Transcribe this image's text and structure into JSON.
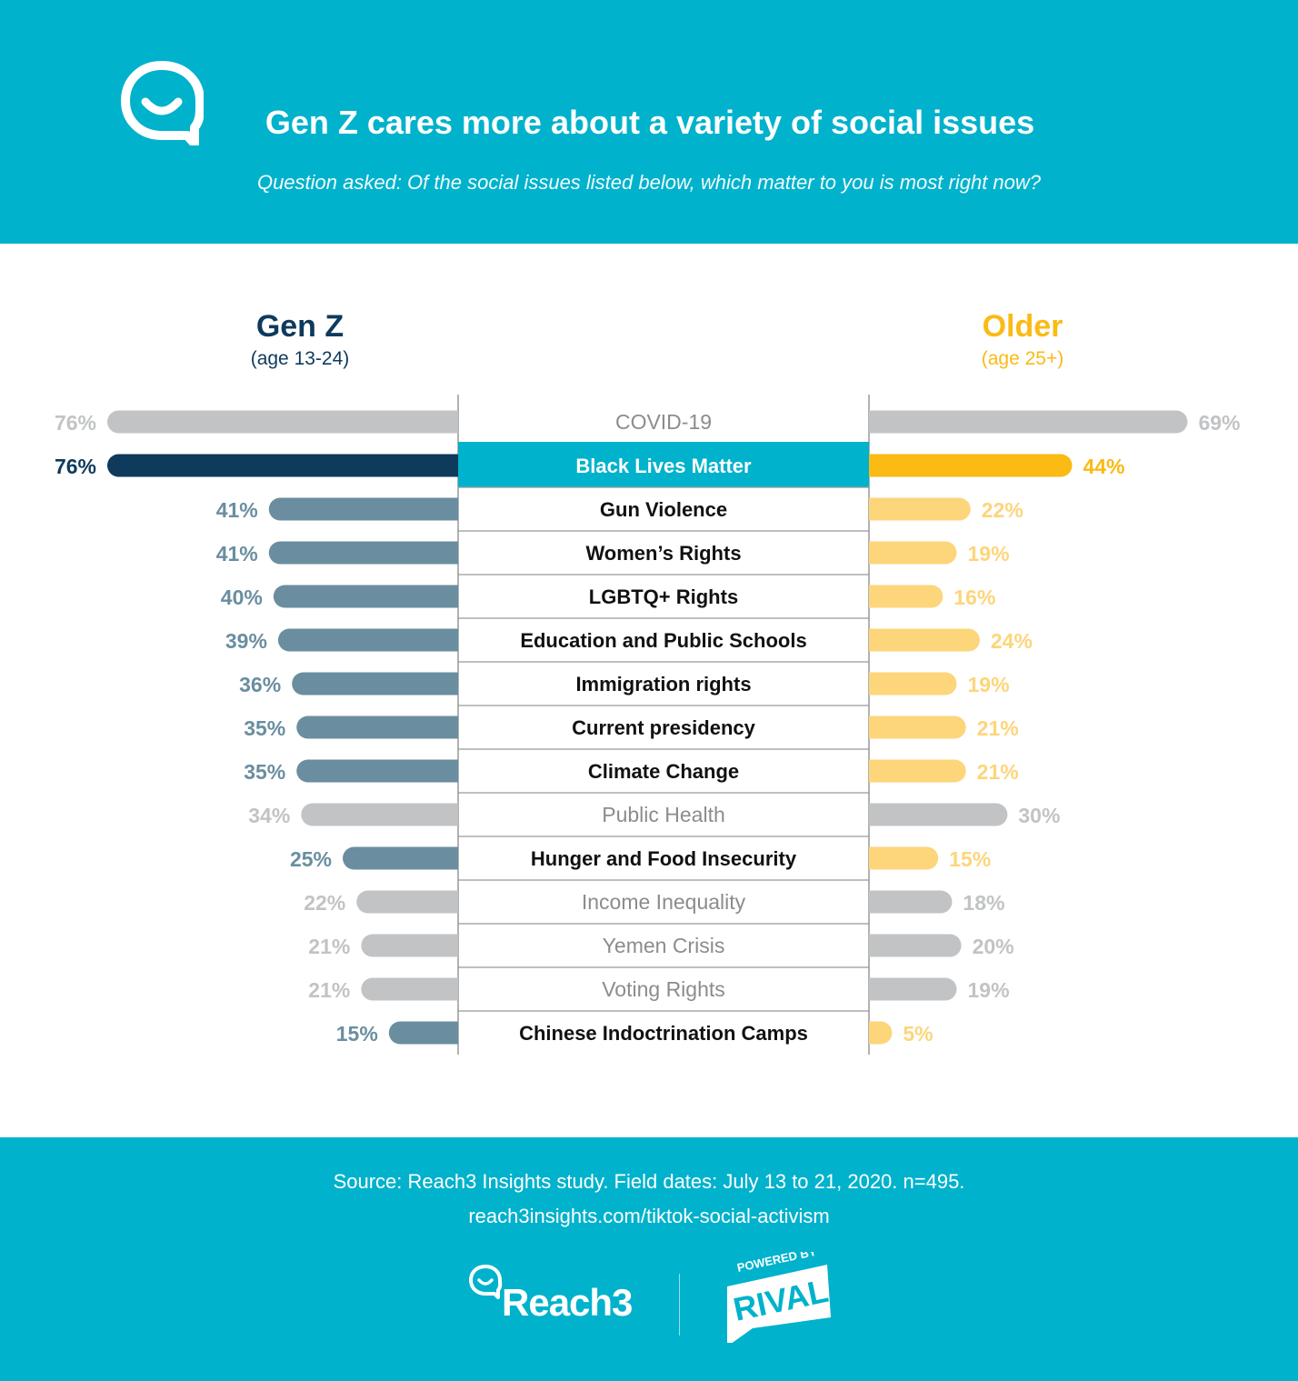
{
  "header": {
    "title": "Gen Z cares more about a variety of social issues",
    "subtitle": "Question asked: Of the social issues listed below, which matter to you is most right now?",
    "logo_icon": "chat-smile-icon"
  },
  "groups": {
    "genz": {
      "name": "Gen Z",
      "sub": "(age 13-24)"
    },
    "older": {
      "name": "Older",
      "sub": "(age 25+)"
    }
  },
  "colors": {
    "header_bg": "#00b2cc",
    "genz_highlight": "#0e3a5c",
    "genz_bold": "#6a8ea0",
    "older_highlight": "#fbba14",
    "older_bold": "#fdd57a",
    "muted_bar": "#c1c3c5",
    "muted_text": "#c1c3c5",
    "highlight_label_bg": "#00b2cc"
  },
  "chart_data": {
    "type": "bar",
    "orientation": "horizontal-diverging",
    "categories": [
      "COVID-19",
      "Black Lives Matter",
      "Gun Violence",
      "Women’s Rights",
      "LGBTQ+ Rights",
      "Education and Public Schools",
      "Immigration rights",
      "Current presidency",
      "Climate Change",
      "Public Health",
      "Hunger and Food Insecurity",
      "Income Inequality",
      "Yemen Crisis",
      "Voting Rights",
      "Chinese Indoctrination Camps"
    ],
    "styles": [
      "muted",
      "highlight",
      "bold",
      "bold",
      "bold",
      "bold",
      "bold",
      "bold",
      "bold",
      "muted",
      "bold",
      "muted",
      "muted",
      "muted",
      "bold"
    ],
    "series": [
      {
        "name": "Gen Z",
        "values": [
          76,
          76,
          41,
          41,
          40,
          39,
          36,
          35,
          35,
          34,
          25,
          22,
          21,
          21,
          15
        ]
      },
      {
        "name": "Older",
        "values": [
          69,
          44,
          22,
          19,
          16,
          24,
          19,
          21,
          21,
          30,
          15,
          18,
          20,
          19,
          5
        ]
      }
    ],
    "value_labels_genz": [
      "76%",
      "76%",
      "41%",
      "41%",
      "40%",
      "39%",
      "36%",
      "35%",
      "35%",
      "34%",
      "25%",
      "22%",
      "21%",
      "21%",
      "15%"
    ],
    "value_labels_older": [
      "69%",
      "44%",
      "22%",
      "19%",
      "16%",
      "24%",
      "19%",
      "21%",
      "21%",
      "30%",
      "15%",
      "18%",
      "20%",
      "19%",
      "5%"
    ],
    "xlim": [
      0,
      76
    ],
    "unit": "%"
  },
  "footer": {
    "source": "Source: Reach3 Insights study. Field dates: July 13 to 21, 2020. n=495.",
    "url": "reach3insights.com/tiktok-social-activism",
    "brand": "Reach3",
    "brand_icon": "reach3-logo-icon",
    "partner_top": "POWERED BY",
    "partner": "RIVAL",
    "partner_icon": "rival-badge-icon"
  }
}
